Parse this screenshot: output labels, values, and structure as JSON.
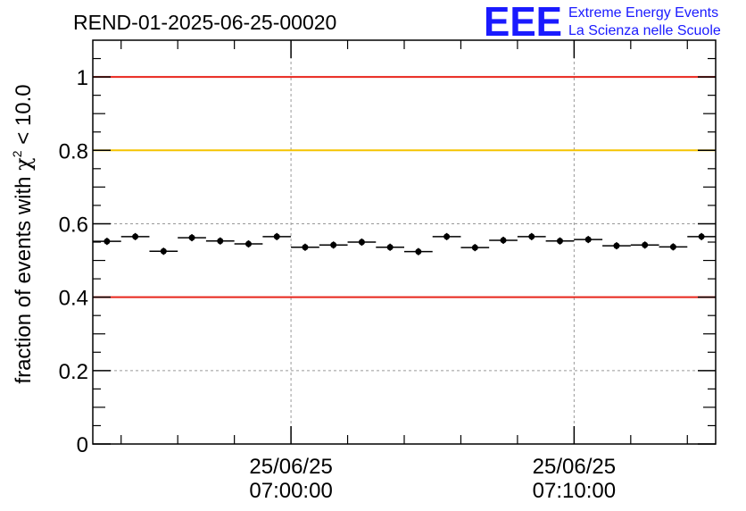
{
  "chart_data": {
    "type": "scatter",
    "title": "REND-01-2025-06-25-00020",
    "ylabel_main": "fraction of events with ",
    "ylabel_chi": "χ",
    "ylabel_sup": "2",
    "ylabel_rest": " < 10.0",
    "xlabel": "",
    "ylim": [
      0,
      1.1
    ],
    "yticks": [
      {
        "value": 0,
        "label": "0"
      },
      {
        "value": 0.2,
        "label": "0.2"
      },
      {
        "value": 0.4,
        "label": "0.4"
      },
      {
        "value": 0.6,
        "label": "0.6"
      },
      {
        "value": 0.8,
        "label": "0.8"
      },
      {
        "value": 1.0,
        "label": "1"
      }
    ],
    "xlim_minutes": [
      -7,
      15
    ],
    "xticks": [
      {
        "minute": 0,
        "date": "25/06/25",
        "time": "07:00:00"
      },
      {
        "minute": 10,
        "date": "25/06/25",
        "time": "07:10:00"
      }
    ],
    "reference_lines": [
      {
        "value": 1.0,
        "color": "#e8251b"
      },
      {
        "value": 0.8,
        "color": "#f5c400"
      },
      {
        "value": 0.4,
        "color": "#e8251b"
      }
    ],
    "bin_width_minutes": 1,
    "x_minutes": [
      -6.5,
      -5.5,
      -4.5,
      -3.5,
      -2.5,
      -1.5,
      -0.5,
      0.5,
      1.5,
      2.5,
      3.5,
      4.5,
      5.5,
      6.5,
      7.5,
      8.5,
      9.5,
      10.5,
      11.5,
      12.5,
      13.5,
      14.5
    ],
    "values": [
      0.552,
      0.565,
      0.525,
      0.562,
      0.553,
      0.545,
      0.565,
      0.536,
      0.542,
      0.55,
      0.536,
      0.524,
      0.565,
      0.535,
      0.555,
      0.565,
      0.553,
      0.557,
      0.54,
      0.542,
      0.537,
      0.565
    ]
  },
  "logo": {
    "letters": "EEE",
    "line1": "Extreme Energy Events",
    "line2": "La Scienza nelle Scuole"
  },
  "colors": {
    "logo": "#1a1aff",
    "grid": "#999999",
    "marker": "#000000"
  }
}
